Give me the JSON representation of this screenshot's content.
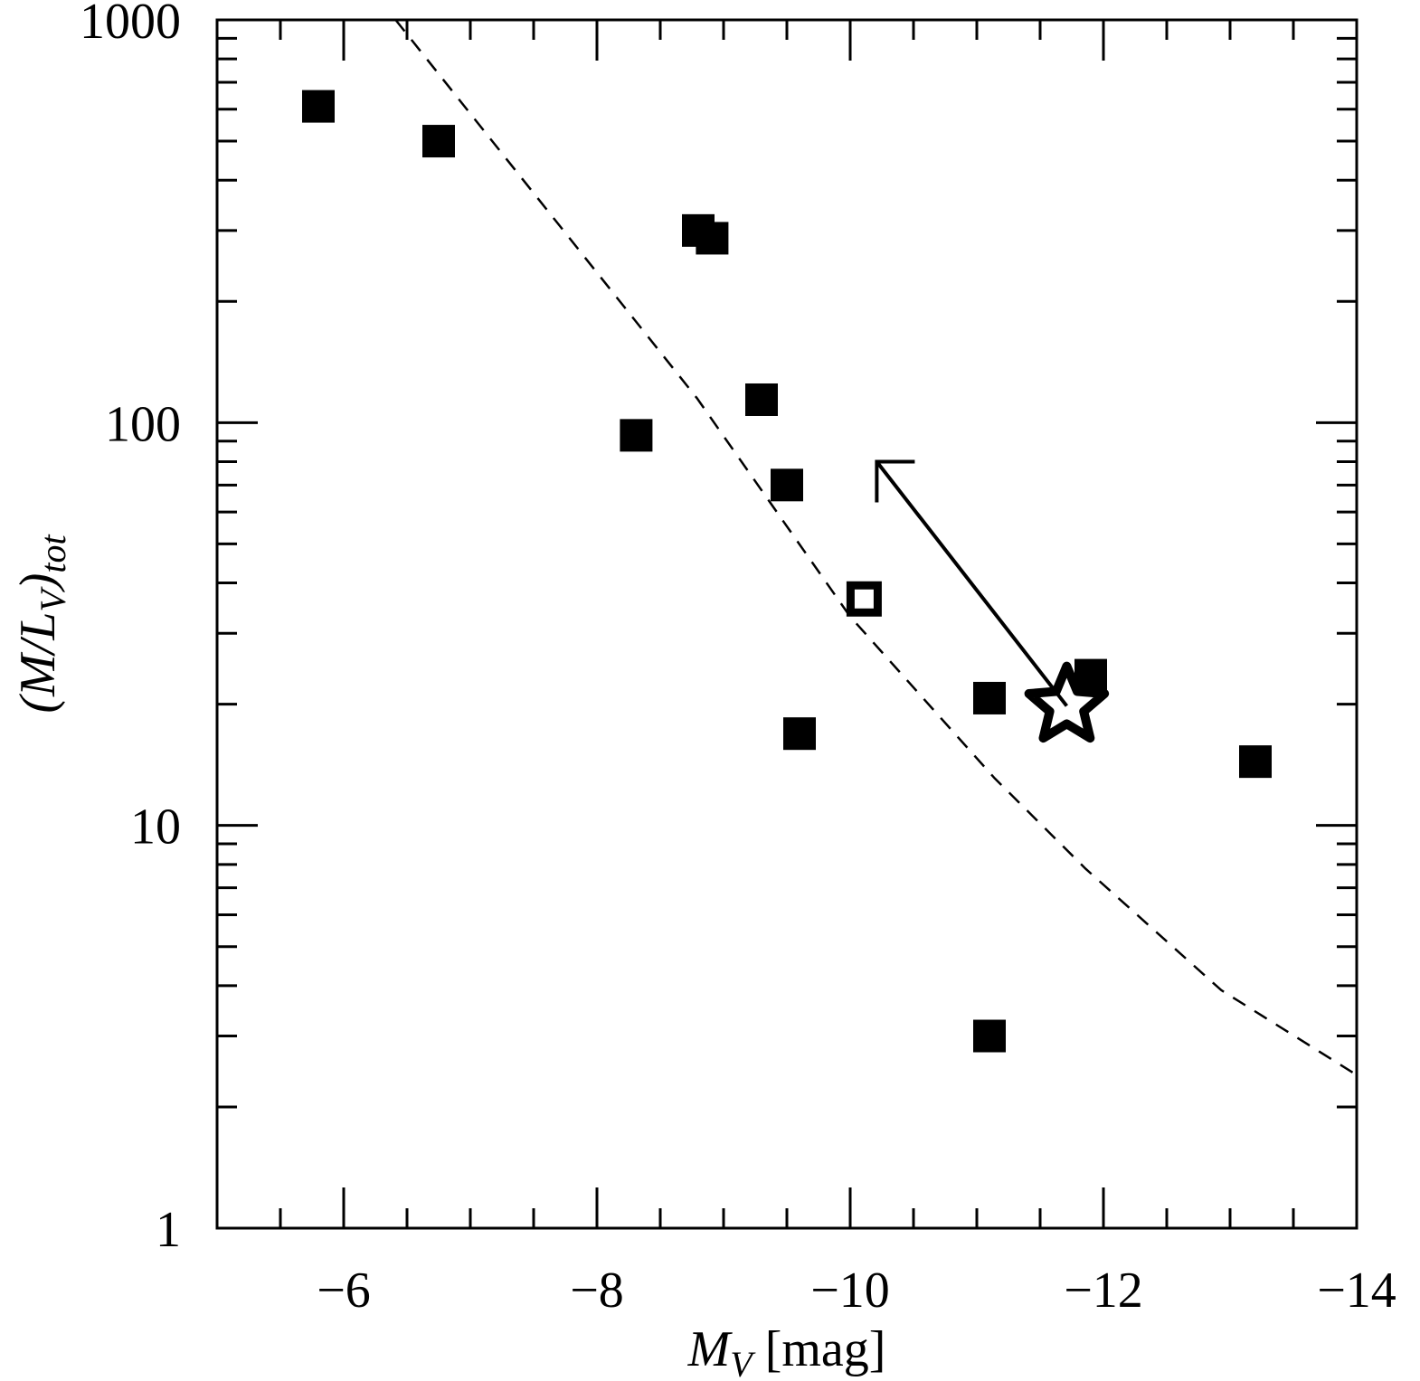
{
  "chart_data": {
    "type": "scatter",
    "xlabel": [
      {
        "text": "M",
        "italic": true
      },
      {
        "text": "V",
        "italic": true,
        "sub": true
      },
      {
        "text": " [mag]"
      }
    ],
    "ylabel": [
      {
        "text": "(M/L",
        "italic": true
      },
      {
        "text": "V",
        "italic": true,
        "sub": true
      },
      {
        "text": ")",
        "italic": true
      },
      {
        "text": "tot",
        "italic": true,
        "sub": true
      }
    ],
    "xlim": [
      -5,
      -14
    ],
    "ylim": [
      1,
      1000
    ],
    "ylog": true,
    "xticks": [
      {
        "value": -6,
        "label": "−6"
      },
      {
        "value": -8,
        "label": "−8"
      },
      {
        "value": -10,
        "label": "−10"
      },
      {
        "value": -12,
        "label": "−12"
      },
      {
        "value": -14,
        "label": "−14"
      }
    ],
    "xminorticks": [
      -5.5,
      -6.5,
      -7,
      -7.5,
      -8.5,
      -9,
      -9.5,
      -10.5,
      -11,
      -11.5,
      -12.5,
      -13,
      -13.5
    ],
    "yticks": [
      1,
      10,
      100,
      1000
    ],
    "yminorticks": [
      2,
      3,
      4,
      5,
      6,
      7,
      8,
      9,
      20,
      30,
      40,
      50,
      60,
      70,
      80,
      90,
      200,
      300,
      400,
      500,
      600,
      700,
      800,
      900
    ],
    "series": [
      {
        "marker": "square",
        "filled": true,
        "color": "#000000",
        "x": [
          -5.8,
          -6.75,
          -8.8,
          -8.91,
          -9.3,
          -8.31,
          -9.5,
          -9.6,
          -11.1,
          -11.9,
          -13.2,
          -11.1
        ],
        "values": [
          610,
          500,
          300,
          287,
          114,
          93,
          70,
          16.9,
          20.7,
          23.6,
          14.4,
          3.0
        ]
      },
      {
        "marker": "square",
        "filled": false,
        "color": "#000000",
        "x": [
          -10.11
        ],
        "values": [
          36.5
        ]
      },
      {
        "marker": "star",
        "filled": false,
        "color": "#000000",
        "x": [
          -11.71
        ],
        "values": [
          19.8
        ]
      },
      {
        "marker": "line",
        "dashed": true,
        "color": "#000000",
        "x": [
          -6.41,
          -7.71,
          -8.79,
          -10.0,
          -11.14,
          -11.86,
          -12.93,
          -14.0
        ],
        "values": [
          1000,
          307,
          115,
          33,
          13.1,
          7.8,
          3.9,
          2.4
        ]
      }
    ],
    "arrow": {
      "x": [
        -11.71,
        -10.21
      ],
      "values": [
        19.8,
        80
      ]
    }
  }
}
